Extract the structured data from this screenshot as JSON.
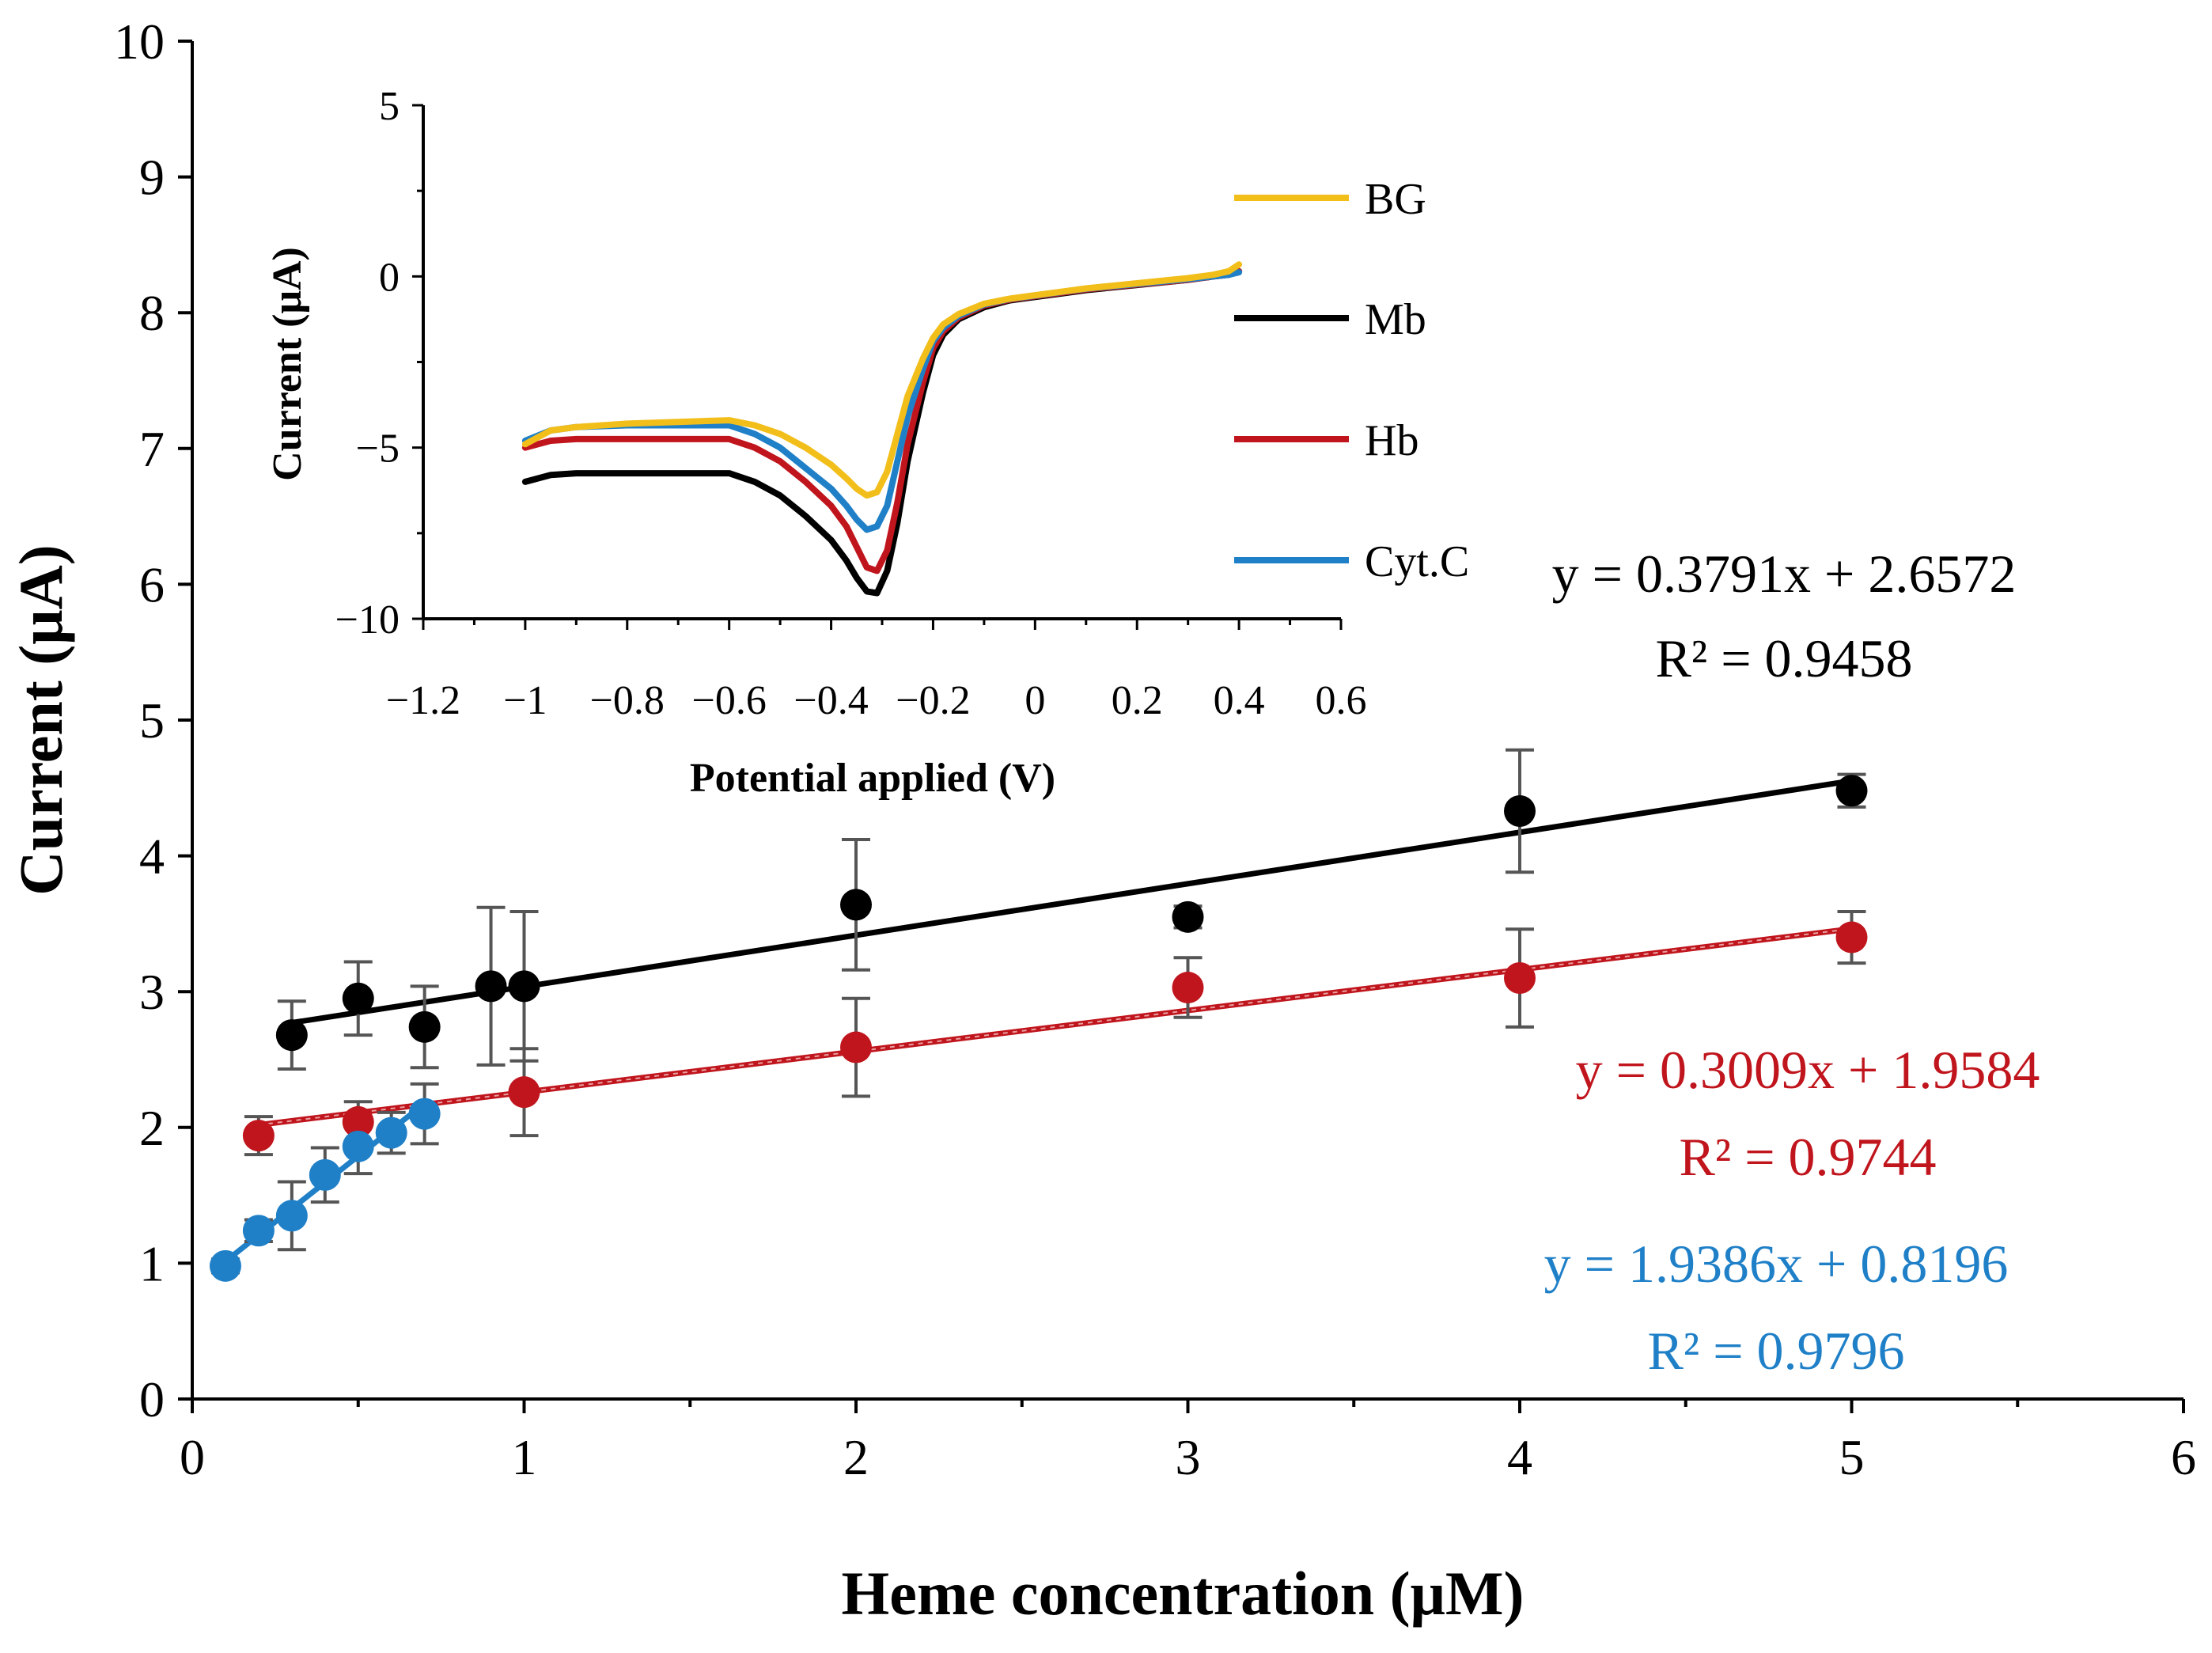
{
  "chart_data": [
    {
      "type": "scatter",
      "xlabel": "Heme concentration (μM)",
      "ylabel": "Current (μA)",
      "xlim": [
        0,
        6
      ],
      "ylim": [
        0,
        10
      ],
      "x_ticks": [
        0,
        1,
        2,
        3,
        4,
        5,
        6
      ],
      "y_ticks": [
        0,
        1,
        2,
        3,
        4,
        5,
        6,
        7,
        8,
        9,
        10
      ],
      "x_tick_labels": [
        "0",
        "1",
        "2",
        "3",
        "4",
        "5",
        "6"
      ],
      "y_tick_labels": [
        "0",
        "1",
        "2",
        "3",
        "4",
        "5",
        "6",
        "7",
        "8",
        "9",
        "10"
      ],
      "grid": false,
      "series": [
        {
          "name": "Mb",
          "color": "#000000",
          "points": [
            {
              "x": 0.3,
              "y": 2.68,
              "err": 0.25
            },
            {
              "x": 0.5,
              "y": 2.95,
              "err": 0.27
            },
            {
              "x": 0.7,
              "y": 2.74,
              "err": 0.3
            },
            {
              "x": 0.9,
              "y": 3.04,
              "err": 0.58
            },
            {
              "x": 1.0,
              "y": 3.04,
              "err": 0.55
            },
            {
              "x": 2.0,
              "y": 3.64,
              "err": 0.48
            },
            {
              "x": 3.0,
              "y": 3.55,
              "err": 0.08
            },
            {
              "x": 4.0,
              "y": 4.33,
              "err": 0.45
            },
            {
              "x": 5.0,
              "y": 4.48,
              "err": 0.12
            }
          ],
          "trendline": {
            "slope": 0.3791,
            "intercept": 2.6572,
            "x_range": [
              0.3,
              5.0
            ]
          },
          "equation": "y = 0.3791x + 2.6572",
          "r2": "R² = 0.9458"
        },
        {
          "name": "Hb",
          "color": "#c0151d",
          "points": [
            {
              "x": 0.2,
              "y": 1.94,
              "err": 0.14
            },
            {
              "x": 0.5,
              "y": 2.04,
              "err": 0.15
            },
            {
              "x": 1.0,
              "y": 2.26,
              "err": 0.32
            },
            {
              "x": 2.0,
              "y": 2.59,
              "err": 0.36
            },
            {
              "x": 3.0,
              "y": 3.03,
              "err": 0.22
            },
            {
              "x": 4.0,
              "y": 3.1,
              "err": 0.36
            },
            {
              "x": 5.0,
              "y": 3.4,
              "err": 0.19
            }
          ],
          "trendline": {
            "slope": 0.3009,
            "intercept": 1.9584,
            "x_range": [
              0.2,
              5.0
            ]
          },
          "equation": "y = 0.3009x + 1.9584",
          "r2": "R² = 0.9744"
        },
        {
          "name": "Cyt.C",
          "color": "#1f80c8",
          "points": [
            {
              "x": 0.1,
              "y": 0.98,
              "err": 0.05
            },
            {
              "x": 0.2,
              "y": 1.24,
              "err": 0.08
            },
            {
              "x": 0.3,
              "y": 1.35,
              "err": 0.25
            },
            {
              "x": 0.4,
              "y": 1.65,
              "err": 0.2
            },
            {
              "x": 0.5,
              "y": 1.86,
              "err": 0.2
            },
            {
              "x": 0.6,
              "y": 1.96,
              "err": 0.15
            },
            {
              "x": 0.7,
              "y": 2.1,
              "err": 0.22
            }
          ],
          "trendline": {
            "slope": 1.9386,
            "intercept": 0.8196,
            "x_range": [
              0.1,
              0.7
            ]
          },
          "equation": "y = 1.9386x + 0.8196",
          "r2": "R² = 0.9796"
        }
      ]
    },
    {
      "type": "line",
      "xlabel": "Potential applied (V)",
      "ylabel": "Current (μA)",
      "xlim": [
        -1.2,
        0.6
      ],
      "ylim": [
        -10,
        5
      ],
      "x_ticks": [
        -1.2,
        -1,
        -0.8,
        -0.6,
        -0.4,
        -0.2,
        0,
        0.2,
        0.4,
        0.6
      ],
      "y_ticks": [
        -10,
        -5,
        0,
        5
      ],
      "x_tick_labels": [
        "−1.2",
        "−1",
        "−0.8",
        "−0.6",
        "−0.4",
        "−0.2",
        "0",
        "0.2",
        "0.4",
        "0.6"
      ],
      "y_tick_labels": [
        "−10",
        "−5",
        "0",
        "5"
      ],
      "legend": "right",
      "x": [
        -1.0,
        -0.95,
        -0.9,
        -0.8,
        -0.7,
        -0.6,
        -0.55,
        -0.5,
        -0.45,
        -0.4,
        -0.37,
        -0.35,
        -0.33,
        -0.31,
        -0.29,
        -0.27,
        -0.25,
        -0.22,
        -0.2,
        -0.18,
        -0.15,
        -0.1,
        -0.05,
        0.0,
        0.05,
        0.1,
        0.2,
        0.3,
        0.35,
        0.38,
        0.4
      ],
      "series": [
        {
          "name": "BG",
          "color": "#f2be1a",
          "values": [
            -4.9,
            -4.5,
            -4.4,
            -4.3,
            -4.25,
            -4.2,
            -4.35,
            -4.6,
            -5.0,
            -5.5,
            -5.9,
            -6.2,
            -6.4,
            -6.3,
            -5.7,
            -4.6,
            -3.5,
            -2.4,
            -1.8,
            -1.4,
            -1.1,
            -0.8,
            -0.65,
            -0.55,
            -0.45,
            -0.35,
            -0.2,
            -0.05,
            0.05,
            0.15,
            0.35
          ]
        },
        {
          "name": "Mb",
          "color": "#000000",
          "values": [
            -6.0,
            -5.8,
            -5.75,
            -5.75,
            -5.75,
            -5.75,
            -6.0,
            -6.4,
            -7.0,
            -7.7,
            -8.3,
            -8.8,
            -9.2,
            -9.25,
            -8.6,
            -7.2,
            -5.4,
            -3.4,
            -2.3,
            -1.7,
            -1.25,
            -0.9,
            -0.7,
            -0.6,
            -0.5,
            -0.4,
            -0.25,
            -0.1,
            0.0,
            0.05,
            0.15
          ]
        },
        {
          "name": "Hb",
          "color": "#c0151d",
          "values": [
            -5.0,
            -4.8,
            -4.75,
            -4.75,
            -4.75,
            -4.75,
            -5.0,
            -5.4,
            -6.0,
            -6.7,
            -7.3,
            -7.9,
            -8.5,
            -8.6,
            -8.0,
            -6.6,
            -4.9,
            -3.1,
            -2.1,
            -1.6,
            -1.2,
            -0.85,
            -0.68,
            -0.58,
            -0.48,
            -0.38,
            -0.24,
            -0.1,
            0.0,
            0.05,
            0.15
          ]
        },
        {
          "name": "Cyt.C",
          "color": "#1f80c8",
          "values": [
            -4.8,
            -4.5,
            -4.4,
            -4.35,
            -4.35,
            -4.35,
            -4.6,
            -5.0,
            -5.6,
            -6.2,
            -6.7,
            -7.1,
            -7.4,
            -7.3,
            -6.7,
            -5.4,
            -4.1,
            -2.7,
            -1.9,
            -1.5,
            -1.15,
            -0.82,
            -0.66,
            -0.56,
            -0.46,
            -0.36,
            -0.22,
            -0.08,
            0.0,
            0.05,
            0.12
          ]
        }
      ]
    }
  ]
}
